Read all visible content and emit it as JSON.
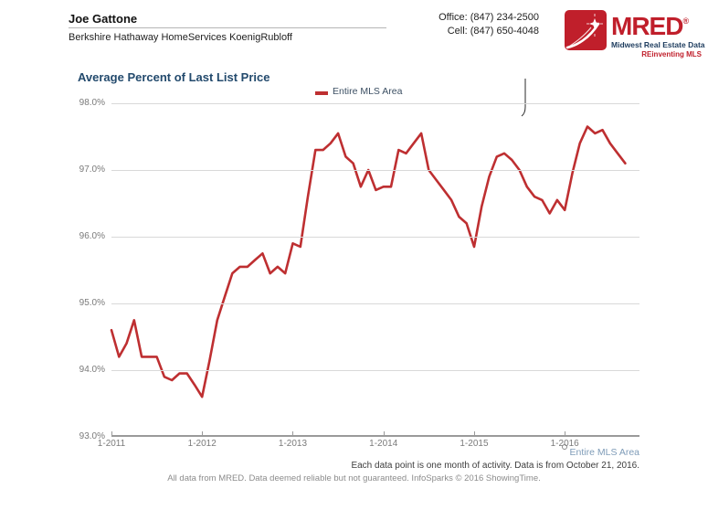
{
  "header": {
    "agent_name": "Joe Gattone",
    "brokerage": "Berkshire Hathaway HomeServices KoenigRubloff",
    "office_phone": "Office: (847) 234-2500",
    "cell_phone": "Cell: (847) 650-4048"
  },
  "logo": {
    "brand": "MRED",
    "reg": "®",
    "line1": "Midwest Real Estate Data",
    "line2": "REinventing MLS",
    "brand_color": "#c01f2b",
    "navy_color": "#1d3c5e"
  },
  "chart": {
    "title": "Average Percent of Last List Price",
    "legend_label": "Entire MLS Area",
    "line_color": "#be2f31"
  },
  "chart_data": {
    "type": "line",
    "title": "Average Percent of Last List Price",
    "xlabel": "",
    "ylabel": "",
    "ylim": [
      93.0,
      98.0
    ],
    "grid": "horizontal",
    "legend_position": "top-center",
    "y_ticks": [
      "98.0%",
      "97.0%",
      "96.0%",
      "95.0%",
      "94.0%",
      "93.0%"
    ],
    "x_ticks": [
      "1-2011",
      "1-2012",
      "1-2013",
      "1-2014",
      "1-2015",
      "1-2016"
    ],
    "x": [
      "1-2011",
      "2-2011",
      "3-2011",
      "4-2011",
      "5-2011",
      "6-2011",
      "7-2011",
      "8-2011",
      "9-2011",
      "10-2011",
      "11-2011",
      "12-2011",
      "1-2012",
      "2-2012",
      "3-2012",
      "4-2012",
      "5-2012",
      "6-2012",
      "7-2012",
      "8-2012",
      "9-2012",
      "10-2012",
      "11-2012",
      "12-2012",
      "1-2013",
      "2-2013",
      "3-2013",
      "4-2013",
      "5-2013",
      "6-2013",
      "7-2013",
      "8-2013",
      "9-2013",
      "10-2013",
      "11-2013",
      "12-2013",
      "1-2014",
      "2-2014",
      "3-2014",
      "4-2014",
      "5-2014",
      "6-2014",
      "7-2014",
      "8-2014",
      "9-2014",
      "10-2014",
      "11-2014",
      "12-2014",
      "1-2015",
      "2-2015",
      "3-2015",
      "4-2015",
      "5-2015",
      "6-2015",
      "7-2015",
      "8-2015",
      "9-2015",
      "10-2015",
      "11-2015",
      "12-2015",
      "1-2016",
      "2-2016",
      "3-2016",
      "4-2016",
      "5-2016",
      "6-2016",
      "7-2016",
      "8-2016",
      "9-2016"
    ],
    "series": [
      {
        "name": "Entire MLS Area",
        "color": "#be2f31",
        "values": [
          94.6,
          94.2,
          94.4,
          94.75,
          94.2,
          94.2,
          94.2,
          93.9,
          93.85,
          93.95,
          93.95,
          93.78,
          93.6,
          94.15,
          94.75,
          95.1,
          95.45,
          95.55,
          95.55,
          95.65,
          95.75,
          95.45,
          95.55,
          95.45,
          95.9,
          95.85,
          96.6,
          97.3,
          97.3,
          97.4,
          97.55,
          97.2,
          97.1,
          96.75,
          97.0,
          96.7,
          96.75,
          96.75,
          97.3,
          97.25,
          97.4,
          97.55,
          97.0,
          96.85,
          96.7,
          96.55,
          96.3,
          96.2,
          95.85,
          96.45,
          96.9,
          97.2,
          97.25,
          97.15,
          97.0,
          96.75,
          96.6,
          96.55,
          96.35,
          96.55,
          96.4,
          96.95,
          97.4,
          97.65,
          97.55,
          97.6,
          97.4,
          97.25,
          97.1
        ]
      }
    ]
  },
  "footer": {
    "area_label": "Entire MLS Area",
    "data_note": "Each data point is one month of activity. Data is from October 21, 2016.",
    "disclaimer": "All data from MRED. Data deemed reliable but not guaranteed. InfoSparks © 2016 ShowingTime."
  }
}
